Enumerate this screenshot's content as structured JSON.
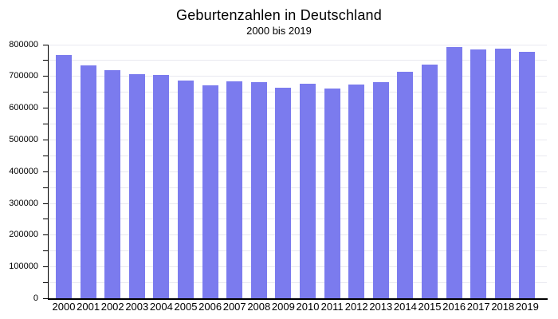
{
  "chart_data": {
    "type": "bar",
    "title": "Geburtenzahlen in Deutschland",
    "subtitle": "2000 bis 2019",
    "categories": [
      "2000",
      "2001",
      "2002",
      "2003",
      "2004",
      "2005",
      "2006",
      "2007",
      "2008",
      "2009",
      "2010",
      "2011",
      "2012",
      "2013",
      "2014",
      "2015",
      "2016",
      "2017",
      "2018",
      "2019"
    ],
    "values": [
      766999,
      734475,
      719250,
      706721,
      705622,
      685795,
      672724,
      684862,
      682514,
      665126,
      677947,
      662685,
      673544,
      682069,
      714927,
      737575,
      792141,
      784901,
      787523,
      778090
    ],
    "xlabel": "",
    "ylabel": "",
    "ylim": [
      0,
      800000
    ],
    "y_label_step": 100000,
    "y_tick_step": 50000,
    "grid": true,
    "legend_position": "none",
    "colors": {
      "bar": "#7b7bee",
      "grid": "#e9e9f0",
      "axis": "#000000",
      "text": "#000000",
      "background": "#ffffff"
    }
  }
}
